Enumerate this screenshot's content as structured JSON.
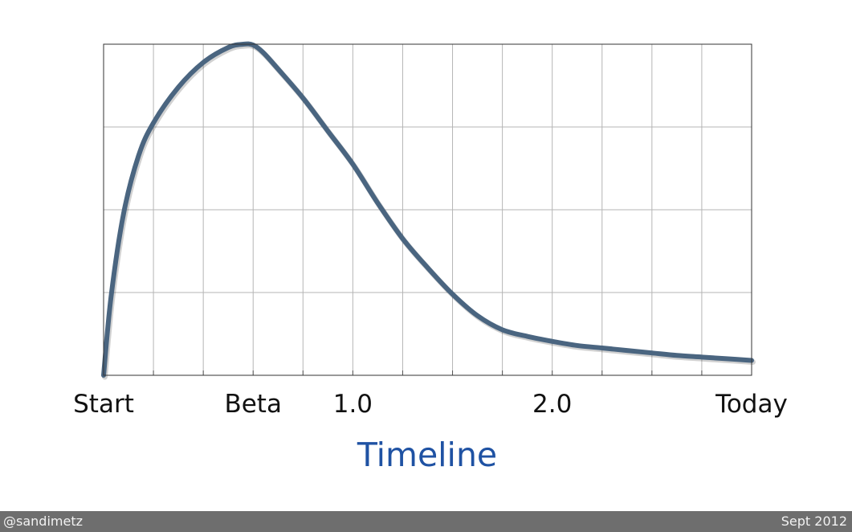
{
  "chart_data": {
    "type": "line",
    "title": "",
    "xlabel": "Timeline",
    "ylabel": "",
    "xlim": [
      0,
      13
    ],
    "ylim": [
      0,
      4
    ],
    "grid": true,
    "x_tick_labels": [
      {
        "x": 0,
        "label": "Start"
      },
      {
        "x": 3,
        "label": "Beta"
      },
      {
        "x": 5,
        "label": "1.0"
      },
      {
        "x": 9,
        "label": "2.0"
      },
      {
        "x": 13,
        "label": "Today"
      }
    ],
    "series": [
      {
        "color": "#4a6580",
        "x": [
          0,
          0.15,
          0.4,
          0.7,
          1.0,
          1.5,
          2.0,
          2.5,
          2.8,
          3.0,
          3.2,
          3.5,
          4.0,
          4.5,
          5.0,
          5.5,
          6.0,
          6.5,
          7.0,
          7.5,
          8.0,
          8.5,
          9.0,
          9.5,
          10.0,
          10.5,
          11.0,
          11.5,
          12.0,
          12.5,
          13.0
        ],
        "values": [
          0,
          0.95,
          1.95,
          2.65,
          3.05,
          3.48,
          3.78,
          3.96,
          4.0,
          3.99,
          3.9,
          3.7,
          3.35,
          2.95,
          2.55,
          2.08,
          1.65,
          1.3,
          0.98,
          0.72,
          0.55,
          0.47,
          0.41,
          0.36,
          0.33,
          0.3,
          0.27,
          0.24,
          0.22,
          0.2,
          0.18
        ]
      }
    ]
  },
  "footer": {
    "left": "@sandimetz",
    "right": "Sept 2012"
  }
}
